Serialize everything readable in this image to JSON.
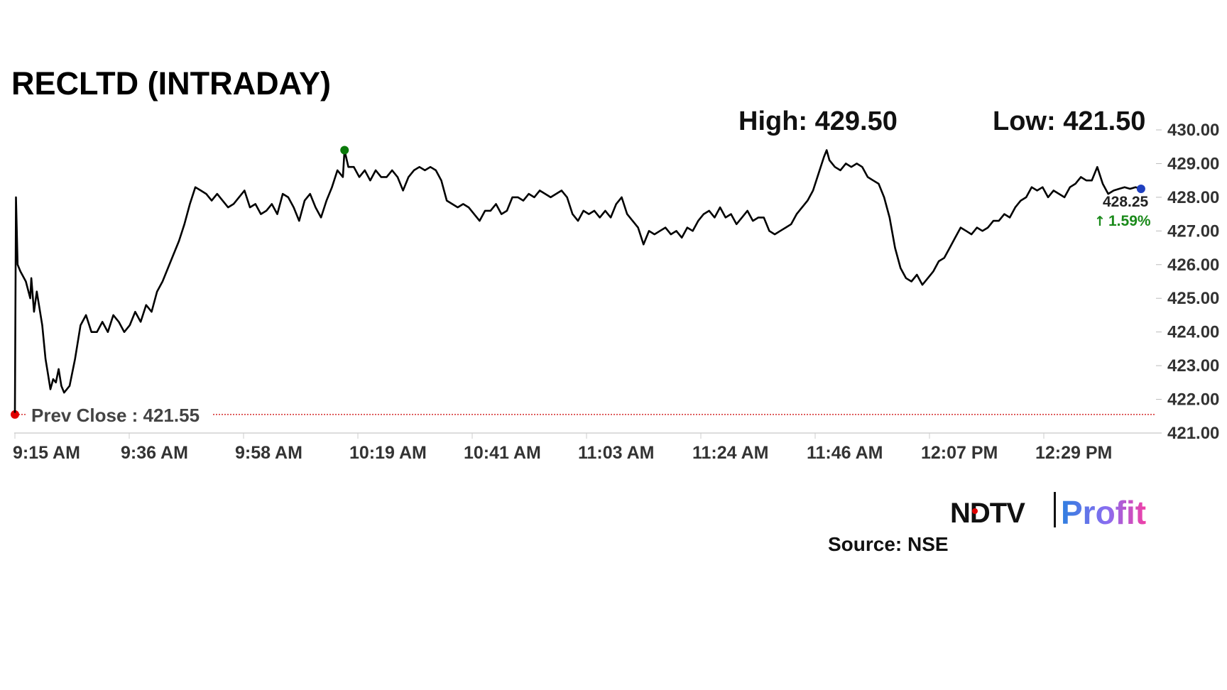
{
  "chart_data": {
    "type": "line",
    "title": "RECLTD (INTRADAY)",
    "high_label": "High: 429.50",
    "low_label": "Low: 421.50",
    "prev_close_label": "Prev Close : 421.55",
    "prev_close": 421.55,
    "last_price": "428.25",
    "change": "1.59%",
    "source": "Source: NSE",
    "ylim": [
      421,
      430
    ],
    "yticks": [
      "430.00",
      "429.00",
      "428.00",
      "427.00",
      "426.00",
      "425.00",
      "424.00",
      "423.00",
      "422.00",
      "421.00"
    ],
    "xticks": [
      "9:15 AM",
      "9:36 AM",
      "9:58 AM",
      "10:19 AM",
      "10:41 AM",
      "11:03 AM",
      "11:24 AM",
      "11:46 AM",
      "12:07 PM",
      "12:29 PM"
    ],
    "x_range_minutes": [
      0,
      209
    ],
    "grid": false,
    "colors": {
      "line": "#000000",
      "prev_close": "#cc0000",
      "high_marker": "#0a7a0a",
      "last_marker": "#1f3fbf",
      "change": "#1a8a1a"
    },
    "series": [
      {
        "values": [
          [
            0,
            421.6
          ],
          [
            0.2,
            428.0
          ],
          [
            0.5,
            426.0
          ],
          [
            1,
            425.8
          ],
          [
            2,
            425.5
          ],
          [
            2.8,
            425.0
          ],
          [
            3,
            425.6
          ],
          [
            3.5,
            424.6
          ],
          [
            4,
            425.2
          ],
          [
            5,
            424.2
          ],
          [
            5.6,
            423.2
          ],
          [
            6,
            422.8
          ],
          [
            6.5,
            422.3
          ],
          [
            7,
            422.6
          ],
          [
            7.5,
            422.5
          ],
          [
            8,
            422.9
          ],
          [
            8.5,
            422.4
          ],
          [
            9,
            422.2
          ],
          [
            10,
            422.4
          ],
          [
            11,
            423.2
          ],
          [
            12,
            424.2
          ],
          [
            13,
            424.5
          ],
          [
            14,
            424.0
          ],
          [
            15,
            424.0
          ],
          [
            16,
            424.3
          ],
          [
            17,
            424.0
          ],
          [
            18,
            424.5
          ],
          [
            19,
            424.3
          ],
          [
            20,
            424.0
          ],
          [
            21,
            424.2
          ],
          [
            22,
            424.6
          ],
          [
            23,
            424.3
          ],
          [
            24,
            424.8
          ],
          [
            25,
            424.6
          ],
          [
            26,
            425.2
          ],
          [
            27,
            425.5
          ],
          [
            28,
            425.9
          ],
          [
            29,
            426.3
          ],
          [
            30,
            426.7
          ],
          [
            31,
            427.2
          ],
          [
            32,
            427.8
          ],
          [
            33,
            428.3
          ],
          [
            34,
            428.2
          ],
          [
            35,
            428.1
          ],
          [
            36,
            427.9
          ],
          [
            37,
            428.1
          ],
          [
            38,
            427.9
          ],
          [
            39,
            427.7
          ],
          [
            40,
            427.8
          ],
          [
            41,
            428.0
          ],
          [
            42,
            428.2
          ],
          [
            43,
            427.7
          ],
          [
            44,
            427.8
          ],
          [
            45,
            427.5
          ],
          [
            46,
            427.6
          ],
          [
            47,
            427.8
          ],
          [
            48,
            427.5
          ],
          [
            49,
            428.1
          ],
          [
            50,
            428.0
          ],
          [
            51,
            427.7
          ],
          [
            52,
            427.3
          ],
          [
            53,
            427.9
          ],
          [
            54,
            428.1
          ],
          [
            55,
            427.7
          ],
          [
            56,
            427.4
          ],
          [
            57,
            427.9
          ],
          [
            58,
            428.3
          ],
          [
            59,
            428.8
          ],
          [
            60,
            428.6
          ],
          [
            60.3,
            429.4
          ],
          [
            61,
            428.9
          ],
          [
            62,
            428.9
          ],
          [
            63,
            428.6
          ],
          [
            64,
            428.8
          ],
          [
            65,
            428.5
          ],
          [
            66,
            428.8
          ],
          [
            67,
            428.6
          ],
          [
            68,
            428.6
          ],
          [
            69,
            428.8
          ],
          [
            70,
            428.6
          ],
          [
            71,
            428.2
          ],
          [
            72,
            428.6
          ],
          [
            73,
            428.8
          ],
          [
            74,
            428.9
          ],
          [
            75,
            428.8
          ],
          [
            76,
            428.9
          ],
          [
            77,
            428.8
          ],
          [
            78,
            428.5
          ],
          [
            79,
            427.9
          ],
          [
            80,
            427.8
          ],
          [
            81,
            427.7
          ],
          [
            82,
            427.8
          ],
          [
            83,
            427.7
          ],
          [
            84,
            427.5
          ],
          [
            85,
            427.3
          ],
          [
            86,
            427.6
          ],
          [
            87,
            427.6
          ],
          [
            88,
            427.8
          ],
          [
            89,
            427.5
          ],
          [
            90,
            427.6
          ],
          [
            91,
            428.0
          ],
          [
            92,
            428.0
          ],
          [
            93,
            427.9
          ],
          [
            94,
            428.1
          ],
          [
            95,
            428.0
          ],
          [
            96,
            428.2
          ],
          [
            97,
            428.1
          ],
          [
            98,
            428.0
          ],
          [
            99,
            428.1
          ],
          [
            100,
            428.2
          ],
          [
            101,
            428.0
          ],
          [
            102,
            427.5
          ],
          [
            103,
            427.3
          ],
          [
            104,
            427.6
          ],
          [
            105,
            427.5
          ],
          [
            106,
            427.6
          ],
          [
            107,
            427.4
          ],
          [
            108,
            427.6
          ],
          [
            109,
            427.4
          ],
          [
            110,
            427.8
          ],
          [
            111,
            428.0
          ],
          [
            112,
            427.5
          ],
          [
            113,
            427.3
          ],
          [
            114,
            427.1
          ],
          [
            115,
            426.6
          ],
          [
            116,
            427.0
          ],
          [
            117,
            426.9
          ],
          [
            118,
            427.0
          ],
          [
            119,
            427.1
          ],
          [
            120,
            426.9
          ],
          [
            121,
            427.0
          ],
          [
            122,
            426.8
          ],
          [
            123,
            427.1
          ],
          [
            124,
            427.0
          ],
          [
            125,
            427.3
          ],
          [
            126,
            427.5
          ],
          [
            127,
            427.6
          ],
          [
            128,
            427.4
          ],
          [
            129,
            427.7
          ],
          [
            130,
            427.4
          ],
          [
            131,
            427.5
          ],
          [
            132,
            427.2
          ],
          [
            133,
            427.4
          ],
          [
            134,
            427.6
          ],
          [
            135,
            427.3
          ],
          [
            136,
            427.4
          ],
          [
            137,
            427.4
          ],
          [
            138,
            427.0
          ],
          [
            139,
            426.9
          ],
          [
            140,
            427.0
          ],
          [
            141,
            427.1
          ],
          [
            142,
            427.2
          ],
          [
            143,
            427.5
          ],
          [
            144,
            427.7
          ],
          [
            145,
            427.9
          ],
          [
            146,
            428.2
          ],
          [
            147,
            428.7
          ],
          [
            148,
            429.2
          ],
          [
            148.5,
            429.4
          ],
          [
            149,
            429.1
          ],
          [
            150,
            428.9
          ],
          [
            151,
            428.8
          ],
          [
            152,
            429.0
          ],
          [
            153,
            428.9
          ],
          [
            154,
            429.0
          ],
          [
            155,
            428.9
          ],
          [
            156,
            428.6
          ],
          [
            157,
            428.5
          ],
          [
            158,
            428.4
          ],
          [
            159,
            428.0
          ],
          [
            160,
            427.4
          ],
          [
            161,
            426.5
          ],
          [
            162,
            425.9
          ],
          [
            163,
            425.6
          ],
          [
            164,
            425.5
          ],
          [
            165,
            425.7
          ],
          [
            166,
            425.4
          ],
          [
            167,
            425.6
          ],
          [
            168,
            425.8
          ],
          [
            169,
            426.1
          ],
          [
            170,
            426.2
          ],
          [
            171,
            426.5
          ],
          [
            172,
            426.8
          ],
          [
            173,
            427.1
          ],
          [
            174,
            427.0
          ],
          [
            175,
            426.9
          ],
          [
            176,
            427.1
          ],
          [
            177,
            427.0
          ],
          [
            178,
            427.1
          ],
          [
            179,
            427.3
          ],
          [
            180,
            427.3
          ],
          [
            181,
            427.5
          ],
          [
            182,
            427.4
          ],
          [
            183,
            427.7
          ],
          [
            184,
            427.9
          ],
          [
            185,
            428.0
          ],
          [
            186,
            428.3
          ],
          [
            187,
            428.2
          ],
          [
            188,
            428.3
          ],
          [
            189,
            428.0
          ],
          [
            190,
            428.2
          ],
          [
            191,
            428.1
          ],
          [
            192,
            428.0
          ],
          [
            193,
            428.3
          ],
          [
            194,
            428.4
          ],
          [
            195,
            428.6
          ],
          [
            196,
            428.5
          ],
          [
            197,
            428.5
          ],
          [
            198,
            428.9
          ],
          [
            199,
            428.4
          ],
          [
            200,
            428.1
          ],
          [
            201,
            428.2
          ],
          [
            202,
            428.25
          ],
          [
            203,
            428.3
          ],
          [
            204,
            428.25
          ],
          [
            205,
            428.3
          ],
          [
            206,
            428.25
          ]
        ]
      }
    ]
  }
}
